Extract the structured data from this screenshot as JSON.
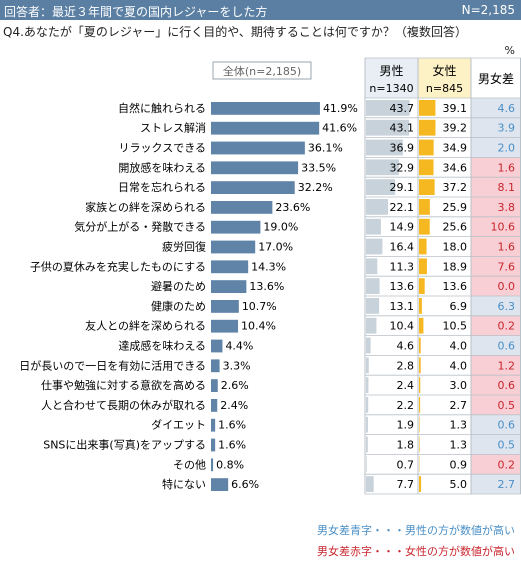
{
  "header": {
    "title": "回答者：最近３年間で夏の国内レジャーをした方",
    "n_total": "N=2,185"
  },
  "question": "Q4.あなたが「夏のレジャー」に行く目的や、期待することは何ですか？（複数回答）",
  "unit": "%",
  "colors": {
    "bar_all": "#5f84a8",
    "bar_male": "#c8d2da",
    "bar_female": "#f5b820",
    "diff_red_bg": "#f7cfd4",
    "diff_blue_bg": "#dee5ef",
    "diff_red_text": "#c8262e",
    "diff_blue_text": "#4a8fc6",
    "male_header_bg": "#e8eef4",
    "female_header_bg": "#fdf1c6"
  },
  "chart_data": {
    "type": "bar",
    "series_label": "全体(n=2,185)",
    "columns": {
      "male": "男性",
      "male_n": "n=1340",
      "female": "女性",
      "female_n": "n=845",
      "diff": "男女差"
    },
    "categories": [
      "自然に触れられる",
      "ストレス解消",
      "リラックスできる",
      "開放感を味わえる",
      "日常を忘れられる",
      "家族との絆を深められる",
      "気分が上がる・発散できる",
      "疲労回復",
      "子供の夏休みを充実したものにする",
      "避暑のため",
      "健康のため",
      "友人との絆を深められる",
      "達成感を味わえる",
      "日が長いので一日を有効に活用できる",
      "仕事や勉強に対する意欲を高める",
      "人と合わせて長期の休みが取れる",
      "ダイエット",
      "SNSに出来事(写真)をアップする",
      "その他",
      "特にない"
    ],
    "all": [
      41.9,
      41.6,
      36.1,
      33.5,
      32.2,
      23.6,
      19.0,
      17.0,
      14.3,
      13.6,
      10.7,
      10.4,
      4.4,
      3.3,
      2.6,
      2.4,
      1.6,
      1.6,
      0.8,
      6.6
    ],
    "male": [
      43.7,
      43.1,
      36.9,
      32.9,
      29.1,
      22.1,
      14.9,
      16.4,
      11.3,
      13.6,
      13.1,
      10.4,
      4.6,
      2.8,
      2.4,
      2.2,
      1.9,
      1.8,
      0.7,
      7.7
    ],
    "female": [
      39.1,
      39.2,
      34.9,
      34.6,
      37.2,
      25.9,
      25.6,
      18.0,
      18.9,
      13.6,
      6.9,
      10.5,
      4.0,
      4.0,
      3.0,
      2.7,
      1.3,
      1.3,
      0.9,
      5.0
    ],
    "diff": [
      4.6,
      3.9,
      2.0,
      1.6,
      8.1,
      3.8,
      10.6,
      1.6,
      7.6,
      0.0,
      6.3,
      0.2,
      0.6,
      1.2,
      0.6,
      0.5,
      0.6,
      0.5,
      0.2,
      2.7
    ],
    "diff_color": [
      "blue",
      "blue",
      "blue",
      "red",
      "red",
      "red",
      "red",
      "red",
      "red",
      "red",
      "blue",
      "red",
      "blue",
      "red",
      "red",
      "red",
      "blue",
      "blue",
      "red",
      "blue"
    ]
  },
  "legend": {
    "blue": "男女差青字・・・男性の方が数値が高い",
    "red": "男女差赤字・・・女性の方が数値が高い"
  }
}
